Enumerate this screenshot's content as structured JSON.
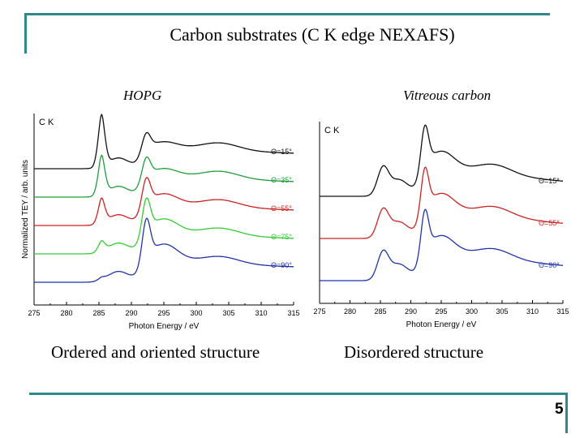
{
  "slide": {
    "title": "Carbon substrates (C K edge NEXAFS)",
    "left_subtitle": "HOPG",
    "right_subtitle": "Vitreous carbon",
    "left_caption": "Ordered and oriented structure",
    "right_caption": "Disordered structure",
    "page_number": "5"
  },
  "colors": {
    "rule": "#2e8a8a"
  },
  "chart_data": [
    {
      "type": "line",
      "panel_label": "C K",
      "xlabel": "Photon Energy / eV",
      "ylabel": "Normalized TEY / arb. units",
      "xlim": [
        275,
        315
      ],
      "x_ticks": [
        "275",
        "280",
        "285",
        "290",
        "295",
        "300",
        "305",
        "310",
        "315"
      ],
      "grid": false,
      "series": [
        {
          "name": "Θ=15°",
          "color": "#111111",
          "offset": 4,
          "pi_star": 1.25,
          "sigma": 0.45
        },
        {
          "name": "Θ=35°",
          "color": "#1f9e3a",
          "offset": 3,
          "pi_star": 0.95,
          "sigma": 0.55
        },
        {
          "name": "Θ=55°",
          "color": "#cc2222",
          "offset": 2,
          "pi_star": 0.6,
          "sigma": 0.75
        },
        {
          "name": "Θ=75°",
          "color": "#33cc33",
          "offset": 1,
          "pi_star": 0.25,
          "sigma": 0.95
        },
        {
          "name": "Θ=90°",
          "color": "#2233aa",
          "offset": 0,
          "pi_star": 0.06,
          "sigma": 1.15
        }
      ]
    },
    {
      "type": "line",
      "panel_label": "C K",
      "xlabel": "Photon Energy / eV",
      "ylabel": "",
      "xlim": [
        275,
        315
      ],
      "x_ticks": [
        "275",
        "280",
        "285",
        "290",
        "295",
        "300",
        "305",
        "310",
        "315"
      ],
      "grid": false,
      "series": [
        {
          "name": "Θ=15°",
          "color": "#111111",
          "offset": 2,
          "pi_star": 0.55,
          "sigma": 0.9
        },
        {
          "name": "Θ=55°",
          "color": "#cc2222",
          "offset": 1,
          "pi_star": 0.55,
          "sigma": 0.9
        },
        {
          "name": "Θ=90°",
          "color": "#2233aa",
          "offset": 0,
          "pi_star": 0.55,
          "sigma": 0.9
        }
      ]
    }
  ]
}
